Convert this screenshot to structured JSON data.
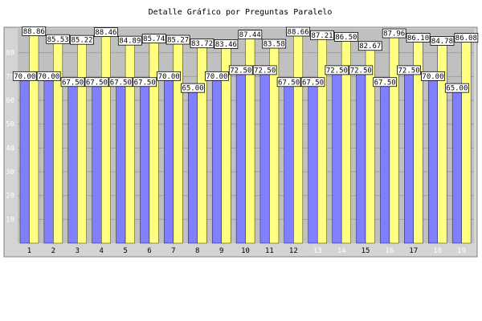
{
  "chart_data": {
    "type": "bar",
    "title": "Detalle Gráfico por Preguntas Paralelo",
    "xlabel": "",
    "ylabel": "",
    "ylim": [
      0,
      90
    ],
    "y_ticks": [
      10,
      20,
      30,
      40,
      50,
      60,
      70,
      80
    ],
    "grid": true,
    "legend": "none",
    "categories": [
      "1",
      "2",
      "3",
      "4",
      "5",
      "6",
      "7",
      "8",
      "9",
      "10",
      "11",
      "12",
      "13",
      "14",
      "15",
      "16",
      "17",
      "18",
      "19"
    ],
    "category_label_colors": [
      "#000000",
      "#000000",
      "#000000",
      "#000000",
      "#000000",
      "#000000",
      "#000000",
      "#000000",
      "#000000",
      "#000000",
      "#000000",
      "#000000",
      "#ffffff",
      "#ffffff",
      "#000000",
      "#ffffff",
      "#000000",
      "#ffffff",
      "#ffffff"
    ],
    "series": [
      {
        "color": "#8080ff",
        "values": [
          70.0,
          70.0,
          67.5,
          67.5,
          67.5,
          67.5,
          70.0,
          65.0,
          70.0,
          72.5,
          72.5,
          67.5,
          67.5,
          72.5,
          72.5,
          67.5,
          72.5,
          70.0,
          65.0
        ],
        "labels": [
          "70.00",
          "70.00",
          "67.50",
          "67.50",
          "67.50",
          "67.50",
          "70.00",
          "65.00",
          "70.00",
          "72.50",
          "72.50",
          "67.50",
          "67.50",
          "72.50",
          "72.50",
          "67.50",
          "72.50",
          "70.00",
          "65.00"
        ]
      },
      {
        "color": "#ffff80",
        "values": [
          88.86,
          85.53,
          85.22,
          88.46,
          84.89,
          85.74,
          85.27,
          83.72,
          83.46,
          87.44,
          83.58,
          88.66,
          87.21,
          86.5,
          82.67,
          87.96,
          86.1,
          84.78,
          86.08
        ],
        "labels": [
          "88.86",
          "85.53",
          "85.22",
          "88.46",
          "84.89",
          "85.74",
          "85.27",
          "83.72",
          "83.46",
          "87.44",
          "83.58",
          "88.66",
          "87.21",
          "86.50",
          "82.67",
          "87.96",
          "86.10",
          "84.78",
          "86.08"
        ]
      }
    ],
    "colors": {
      "plot_background": "#c0c0c0",
      "outer_background": "#d4d4d4",
      "gridline": "#a0a0a0",
      "tick_label": "#ffffff"
    }
  }
}
